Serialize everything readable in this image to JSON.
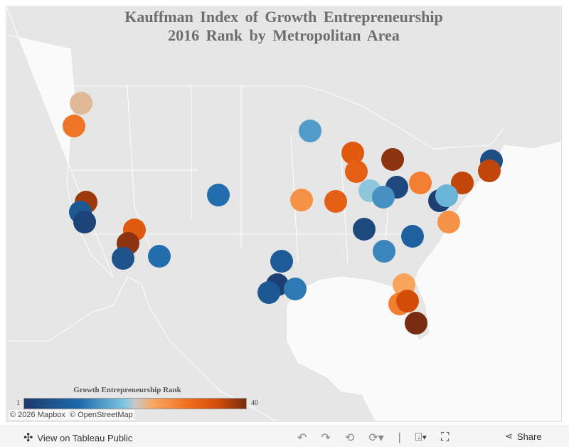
{
  "title": {
    "line1": "Kauffman Index of Growth Entrepreneurship",
    "line2": "2016 Rank by Metropolitan Area"
  },
  "legend": {
    "title": "Growth Entrepreneurship Rank",
    "min": "1",
    "max": "40",
    "colors": [
      "#1d3a6b",
      "#1f6aab",
      "#7cc6e2",
      "#c8c8c8",
      "#f9a860",
      "#ee6a1a",
      "#d44d08",
      "#7a2c12"
    ]
  },
  "attribution": "© 2026 Mapbox  © OpenStreetMap",
  "points": [
    {
      "rank": 22
    },
    {
      "rank": 29
    },
    {
      "rank": 15
    },
    {
      "rank": 33
    },
    {
      "rank": 39
    },
    {
      "rank": 32
    },
    {
      "rank": 5
    },
    {
      "rank": 36
    },
    {
      "rank": 36
    },
    {
      "rank": 28
    },
    {
      "rank": 4
    },
    {
      "rank": 19
    },
    {
      "rank": 14
    },
    {
      "rank": 2
    },
    {
      "rank": 17
    },
    {
      "rank": 26
    },
    {
      "rank": 11
    },
    {
      "rank": 26
    },
    {
      "rank": 32
    },
    {
      "rank": 38
    },
    {
      "rank": 7
    },
    {
      "rank": 3
    },
    {
      "rank": 33
    },
    {
      "rank": 39
    },
    {
      "rank": 11
    },
    {
      "rank": 6
    },
    {
      "rank": 4
    },
    {
      "rank": 9
    },
    {
      "rank": 13
    },
    {
      "rank": 8
    },
    {
      "rank": 2
    },
    {
      "rank": 7
    },
    {
      "rank": 12
    },
    {
      "rank": 24
    },
    {
      "rank": 28
    },
    {
      "rank": 35
    },
    {
      "rank": 40
    }
  ],
  "toolbar": {
    "view_label": "View on Tableau Public",
    "share_label": "Share"
  }
}
